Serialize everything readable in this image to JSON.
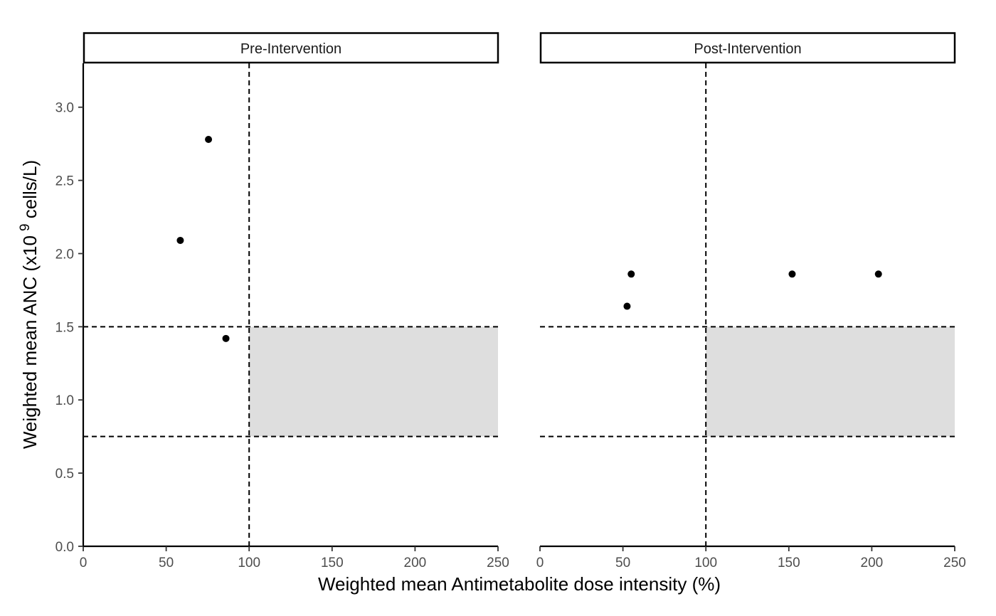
{
  "chart_data": {
    "type": "scatter",
    "xlabel": "Weighted mean Antimetabolite dose intensity (%)",
    "ylabel": "Weighted mean ANC (x10 ⁹ cells/L)",
    "ylabel_parts": {
      "main": "Weighted mean ANC (x10",
      "sup": "9",
      "tail": " cells/L)"
    },
    "xlim": [
      0,
      250
    ],
    "ylim": [
      0,
      3.3
    ],
    "x_ticks": [
      "0",
      "50",
      "100",
      "150",
      "200",
      "250"
    ],
    "y_ticks": [
      "0.0",
      "0.5",
      "1.0",
      "1.5",
      "2.0",
      "2.5",
      "3.0"
    ],
    "grid": false,
    "reference_lines": {
      "vertical_x": [
        100
      ],
      "horizontal_y": [
        0.75,
        1.5
      ]
    },
    "shaded_region": {
      "x": [
        100,
        250
      ],
      "y": [
        0.75,
        1.5
      ],
      "color": "#dedede"
    },
    "panels": [
      {
        "strip": "Pre-Intervention",
        "points": [
          {
            "x": 58.5,
            "y": 2.09
          },
          {
            "x": 75.5,
            "y": 2.78
          },
          {
            "x": 86,
            "y": 1.42
          }
        ]
      },
      {
        "strip": "Post-Intervention",
        "points": [
          {
            "x": 52.5,
            "y": 1.64
          },
          {
            "x": 55,
            "y": 1.86
          },
          {
            "x": 152,
            "y": 1.86
          },
          {
            "x": 204,
            "y": 1.86
          }
        ]
      }
    ]
  }
}
